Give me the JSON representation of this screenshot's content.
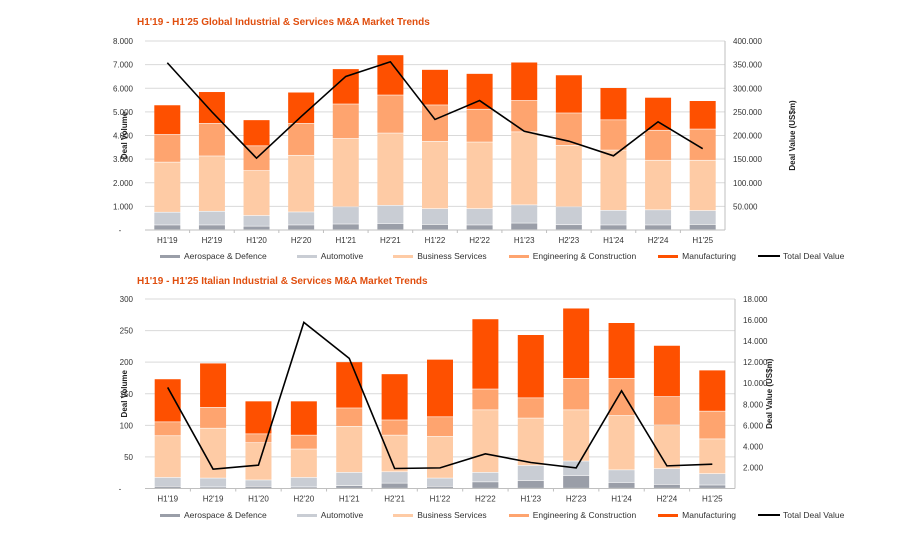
{
  "colors": {
    "aerospace": "#9a9ea8",
    "automotive": "#c9cdd4",
    "business": "#fecba5",
    "engineering": "#fea46f",
    "manufacturing": "#fe5000",
    "line": "#000000",
    "title": "#e04e0e"
  },
  "legend": [
    "Aerospace & Defence",
    "Automotive",
    "Business Services",
    "Engineering & Construction",
    "Manufacturing",
    "Total Deal Value"
  ],
  "chart_data": [
    {
      "type": "bar",
      "stacked": true,
      "title": "H1'19 - H1'25  Global Industrial & Services M&A Market Trends",
      "ylabel": "Deal Volume",
      "y2label": "Deal Value (US$m)",
      "ylim": [
        0,
        8000
      ],
      "y2lim": [
        0,
        400000
      ],
      "yticks": [
        "-",
        "1.000",
        "2.000",
        "3.000",
        "4.000",
        "5.000",
        "6.000",
        "7.000",
        "8.000"
      ],
      "y2ticks": [
        "",
        "50.000",
        "100.000",
        "150.000",
        "200.000",
        "250.000",
        "300.000",
        "350.000",
        "400.000"
      ],
      "categories": [
        "H1'19",
        "H2'19",
        "H1'20",
        "H2'20",
        "H1'21",
        "H2'21",
        "H1'22",
        "H2'22",
        "H1'23",
        "H2'23",
        "H1'24",
        "H2'24",
        "H1'25"
      ],
      "series": [
        {
          "name": "Aerospace & Defence",
          "values": [
            200,
            200,
            150,
            200,
            240,
            260,
            220,
            200,
            280,
            210,
            200,
            200,
            220
          ]
        },
        {
          "name": "Automotive",
          "values": [
            540,
            580,
            450,
            550,
            730,
            770,
            670,
            690,
            770,
            760,
            620,
            640,
            590
          ]
        },
        {
          "name": "Business Services",
          "values": [
            2120,
            2340,
            1900,
            2400,
            2890,
            3060,
            2850,
            2820,
            3090,
            2600,
            2550,
            2100,
            2130
          ]
        },
        {
          "name": "Engineering & Construction",
          "values": [
            1170,
            1380,
            1050,
            1350,
            1460,
            1610,
            1540,
            1390,
            1330,
            1370,
            1280,
            1270,
            1320
          ]
        },
        {
          "name": "Manufacturing",
          "values": [
            1250,
            1340,
            1100,
            1320,
            1490,
            1700,
            1500,
            1510,
            1620,
            1610,
            1360,
            1390,
            1200
          ]
        }
      ],
      "line": {
        "name": "Total Deal Value",
        "axis": "right",
        "values": [
          354000,
          250000,
          152000,
          240000,
          325000,
          356000,
          234000,
          274000,
          209000,
          188000,
          157000,
          229000,
          172000
        ]
      },
      "legend_position": "bottom",
      "grid": true
    },
    {
      "type": "bar",
      "stacked": true,
      "title": "H1'19 - H1'25  Italian Industrial & Services M&A Market Trends",
      "ylabel": "Deal Volume",
      "y2label": "Deal Value (US$m)",
      "ylim": [
        0,
        300
      ],
      "y2lim": [
        0,
        18000
      ],
      "yticks": [
        "-",
        "50",
        "100",
        "150",
        "200",
        "250",
        "300"
      ],
      "y2ticks": [
        "",
        "2.000",
        "4.000",
        "6.000",
        "8.000",
        "10.000",
        "12.000",
        "14.000",
        "16.000",
        "18.000"
      ],
      "categories": [
        "H1'19",
        "H2'19",
        "H1'20",
        "H2'20",
        "H1'21",
        "H2'21",
        "H1'22",
        "H2'22",
        "H1'23",
        "H2'23",
        "H1'24",
        "H2'24",
        "H1'25"
      ],
      "series": [
        {
          "name": "Aerospace & Defence",
          "values": [
            3,
            2,
            3,
            2,
            4,
            8,
            3,
            10,
            12,
            20,
            9,
            6,
            5
          ]
        },
        {
          "name": "Automotive",
          "values": [
            14,
            14,
            10,
            15,
            21,
            18,
            13,
            15,
            24,
            23,
            20,
            25,
            18
          ]
        },
        {
          "name": "Business Services",
          "values": [
            66,
            79,
            59,
            45,
            73,
            58,
            66,
            99,
            75,
            81,
            86,
            69,
            55
          ]
        },
        {
          "name": "Engineering & Construction",
          "values": [
            22,
            33,
            14,
            22,
            29,
            24,
            31,
            33,
            32,
            50,
            59,
            45,
            44
          ]
        },
        {
          "name": "Manufacturing",
          "values": [
            68,
            70,
            52,
            54,
            73,
            73,
            91,
            111,
            100,
            111,
            88,
            81,
            65
          ]
        }
      ],
      "line": {
        "name": "Total Deal Value",
        "axis": "right",
        "values": [
          9600,
          1840,
          2220,
          15780,
          12360,
          1900,
          1960,
          3290,
          2470,
          1960,
          9280,
          2150,
          2310
        ]
      },
      "legend_position": "bottom",
      "grid": true
    }
  ]
}
